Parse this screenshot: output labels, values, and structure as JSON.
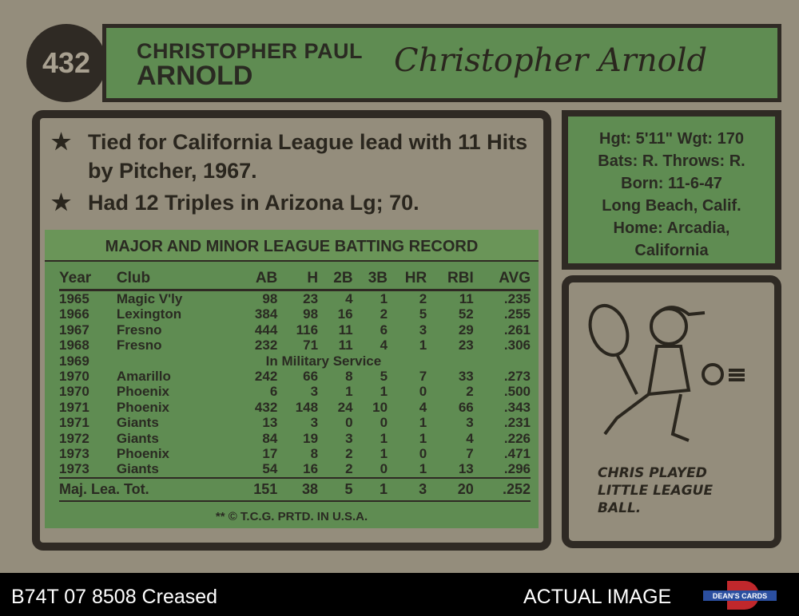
{
  "card": {
    "number": "432",
    "first_name": "CHRISTOPHER PAUL",
    "last_name": "ARNOLD",
    "signature": "Christopher Arnold",
    "facts": [
      "Tied for California League lead with 11 Hits by Pitcher, 1967.",
      "Had 12 Triples in Arizona Lg; 70."
    ],
    "bio": [
      "Hgt: 5'11\" Wgt: 170",
      "Bats: R. Throws: R.",
      "Born: 11-6-47",
      "Long Beach, Calif.",
      "Home: Arcadia,",
      "California"
    ],
    "table_title": "MAJOR AND MINOR LEAGUE BATTING RECORD",
    "headers": [
      "Year",
      "Club",
      "AB",
      "H",
      "2B",
      "3B",
      "HR",
      "RBI",
      "AVG"
    ],
    "rows": [
      [
        "1965",
        "Magic V'ly",
        "98",
        "23",
        "4",
        "1",
        "2",
        "11",
        ".235"
      ],
      [
        "1966",
        "Lexington",
        "384",
        "98",
        "16",
        "2",
        "5",
        "52",
        ".255"
      ],
      [
        "1967",
        "Fresno",
        "444",
        "116",
        "11",
        "6",
        "3",
        "29",
        ".261"
      ],
      [
        "1968",
        "Fresno",
        "232",
        "71",
        "11",
        "4",
        "1",
        "23",
        ".306"
      ],
      [
        "1969",
        "In Military Service"
      ],
      [
        "1970",
        "Amarillo",
        "242",
        "66",
        "8",
        "5",
        "7",
        "33",
        ".273"
      ],
      [
        "1970",
        "Phoenix",
        "6",
        "3",
        "1",
        "1",
        "0",
        "2",
        ".500"
      ],
      [
        "1971",
        "Phoenix",
        "432",
        "148",
        "24",
        "10",
        "4",
        "66",
        ".343"
      ],
      [
        "1971",
        "Giants",
        "13",
        "3",
        "0",
        "0",
        "1",
        "3",
        ".231"
      ],
      [
        "1972",
        "Giants",
        "84",
        "19",
        "3",
        "1",
        "1",
        "4",
        ".226"
      ],
      [
        "1973",
        "Phoenix",
        "17",
        "8",
        "2",
        "1",
        "0",
        "7",
        ".471"
      ],
      [
        "1973",
        "Giants",
        "54",
        "16",
        "2",
        "0",
        "1",
        "13",
        ".296"
      ]
    ],
    "totals": [
      "Maj. Lea. Tot.",
      "151",
      "38",
      "5",
      "1",
      "3",
      "20",
      ".252"
    ],
    "copyright": "** © T.C.G. PRTD. IN U.S.A.",
    "cartoon_caption": [
      "CHRIS PLAYED",
      "LITTLE LEAGUE",
      "BALL."
    ]
  },
  "strip": {
    "label": "B74T 07 8508 Creased",
    "actual": "ACTUAL IMAGE",
    "logo_text": "DEAN'S CARDS"
  },
  "colors": {
    "card": "#948d7c",
    "green": "#5f8c52",
    "ink": "#2f2a24"
  }
}
